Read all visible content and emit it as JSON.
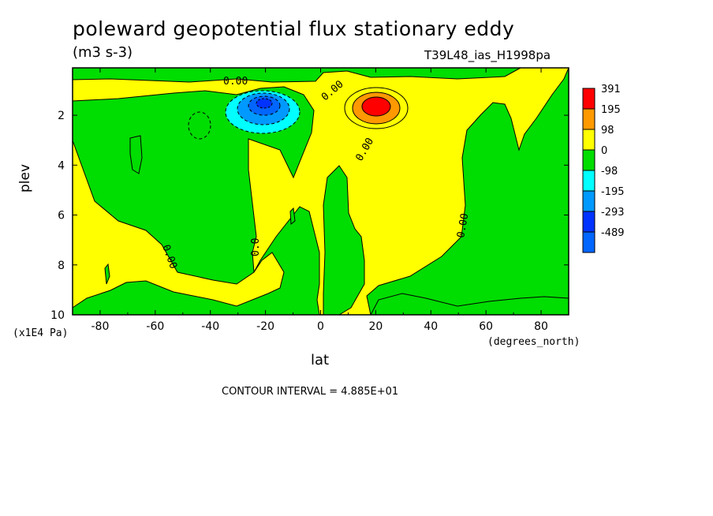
{
  "chart_data": {
    "type": "heatmap",
    "title": "poleward geopotential flux stationary eddy",
    "units": "(m3 s-3)",
    "experiment": "T39L48_ias_H1998pa",
    "xlabel": "lat",
    "x_units": "(degrees_north)",
    "ylabel": "plev",
    "y_units": "(x1E4 Pa)",
    "xlim": [
      -90,
      90
    ],
    "ylim": [
      10,
      0.1
    ],
    "x_ticks": [
      "-80",
      "-60",
      "-40",
      "-20",
      "0",
      "20",
      "40",
      "60",
      "80"
    ],
    "x_tick_values": [
      -80,
      -60,
      -40,
      -20,
      0,
      20,
      40,
      60,
      80
    ],
    "y_ticks": [
      "2",
      "4",
      "6",
      "8",
      "10"
    ],
    "y_tick_values": [
      2,
      4,
      6,
      8,
      10
    ],
    "contour_interval": "CONTOUR INTERVAL = 4.885E+01",
    "contour_labels": [
      "0.00",
      "0.00",
      "0.00",
      "0.0",
      "0.00",
      "0.00"
    ],
    "legend": {
      "placement": "right",
      "levels": [
        "391",
        "195",
        "98",
        "0",
        "-98",
        "-195",
        "-293",
        "-489"
      ],
      "colors": [
        "#ff0000",
        "#ff9900",
        "#ffff00",
        "#00dd00",
        "#00ffff",
        "#0099ff",
        "#0033ff",
        "#0066ff"
      ]
    },
    "features": [
      {
        "name": "negative extremum",
        "lat": -20,
        "plev": 1.7,
        "value_range": [
          -489,
          -98
        ]
      },
      {
        "name": "positive extremum",
        "lat": 20,
        "plev": 1.6,
        "value_range": [
          98,
          391
        ]
      }
    ]
  }
}
